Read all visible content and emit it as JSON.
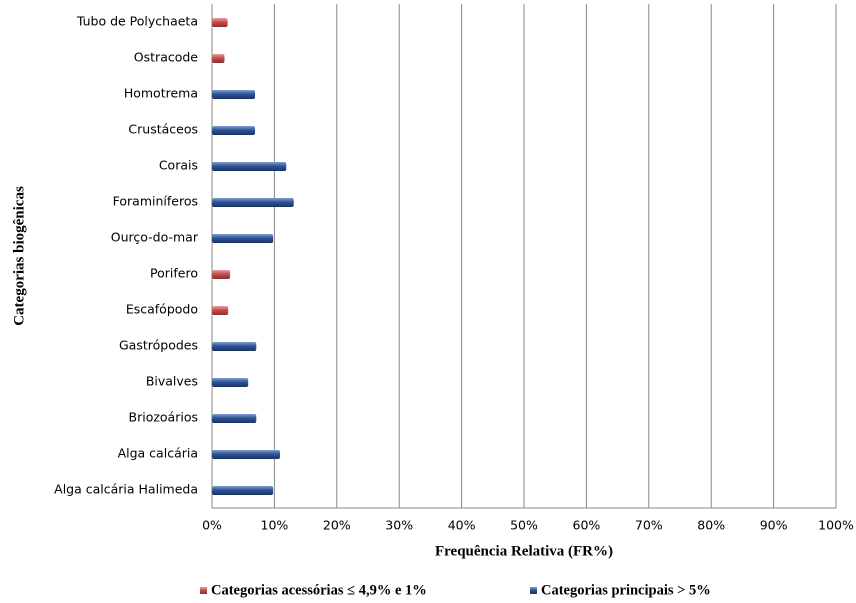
{
  "chart_data": {
    "type": "hbar",
    "y_label": "Categorias biogênicas",
    "x_label": "Frequência  Relativa (FR%)",
    "categories": [
      "Tubo de Polychaeta",
      "Ostracode",
      "Homotrema",
      "Crustáceos",
      "Corais",
      "Foraminíferos",
      "Ourço-do-mar",
      "Porifero",
      "Escafópodo",
      "Gastrópodes",
      "Bivalves",
      "Briozoários",
      "Alga calcária",
      "Alga calcária Halimeda"
    ],
    "series": [
      {
        "name": "Categorias acessórias ≤ 4,9% e 1%",
        "color": "#c0504d",
        "values": [
          2.5,
          2,
          null,
          null,
          null,
          null,
          null,
          2.9,
          2.6,
          null,
          null,
          null,
          null,
          null
        ]
      },
      {
        "name": "Categorias principais > 5%",
        "color": "#2f5597",
        "values": [
          null,
          null,
          6.9,
          6.9,
          11.9,
          13.1,
          9.8,
          null,
          null,
          7.1,
          5.8,
          7.1,
          10.9,
          9.8
        ]
      }
    ],
    "xlim": [
      0,
      100
    ],
    "xticks": [
      {
        "value": 0,
        "label": "0%"
      },
      {
        "value": 10,
        "label": "10%"
      },
      {
        "value": 20,
        "label": "20%"
      },
      {
        "value": 30,
        "label": "30%"
      },
      {
        "value": 40,
        "label": "40%"
      },
      {
        "value": 50,
        "label": "50%"
      },
      {
        "value": 60,
        "label": "60%"
      },
      {
        "value": 70,
        "label": "70%"
      },
      {
        "value": 80,
        "label": "80%"
      },
      {
        "value": 90,
        "label": "90%"
      },
      {
        "value": 100,
        "label": "100%"
      }
    ],
    "grid": true,
    "legend": "bottom"
  }
}
